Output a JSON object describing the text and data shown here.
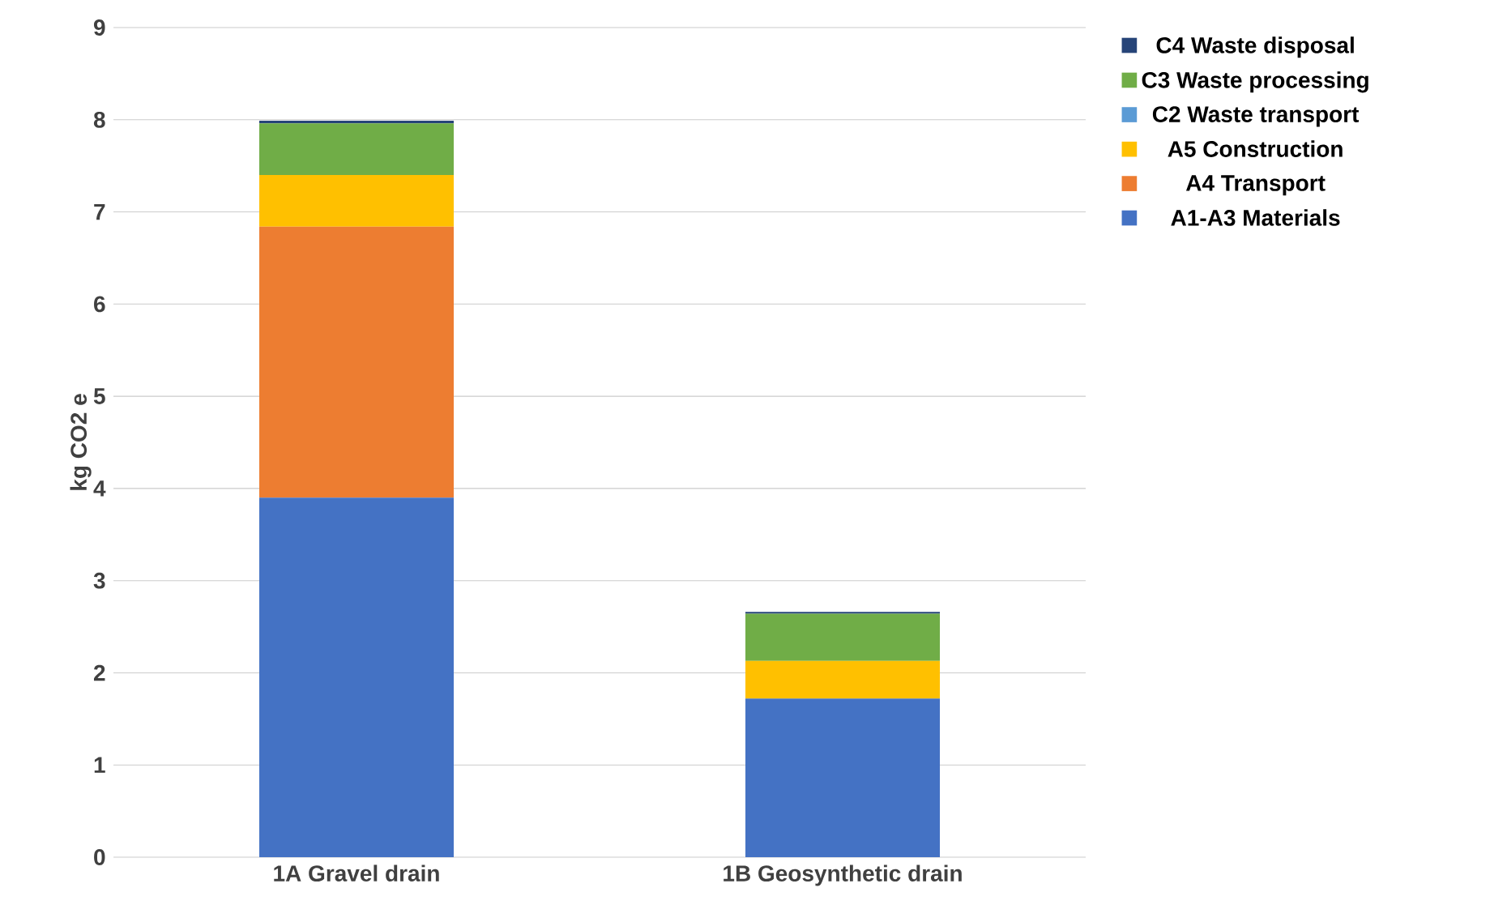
{
  "chart_data": {
    "type": "bar",
    "stacked": true,
    "ylabel": "kg CO2 e",
    "categories": [
      "1A Gravel drain",
      "1B Geosynthetic drain"
    ],
    "ylim": [
      0,
      9
    ],
    "yticks": [
      0,
      1,
      2,
      3,
      4,
      5,
      6,
      7,
      8,
      9
    ],
    "grid": "y",
    "legend": "right",
    "series": [
      {
        "name": "A1-A3 Materials",
        "color": "#4472c4",
        "values": [
          3.9,
          1.72
        ]
      },
      {
        "name": "A4 Transport",
        "color": "#ed7d31",
        "values": [
          2.94,
          0
        ]
      },
      {
        "name": "A5 Construction",
        "color": "#ffc000",
        "values": [
          0.56,
          0.41
        ]
      },
      {
        "name": "C2 Waste transport",
        "color": "#5b9bd5",
        "values": [
          0,
          0
        ]
      },
      {
        "name": "C3 Waste processing",
        "color": "#70ad47",
        "values": [
          0.56,
          0.51
        ]
      },
      {
        "name": "C4 Waste disposal",
        "color": "#264478",
        "values": [
          0.03,
          0.02
        ]
      }
    ]
  }
}
